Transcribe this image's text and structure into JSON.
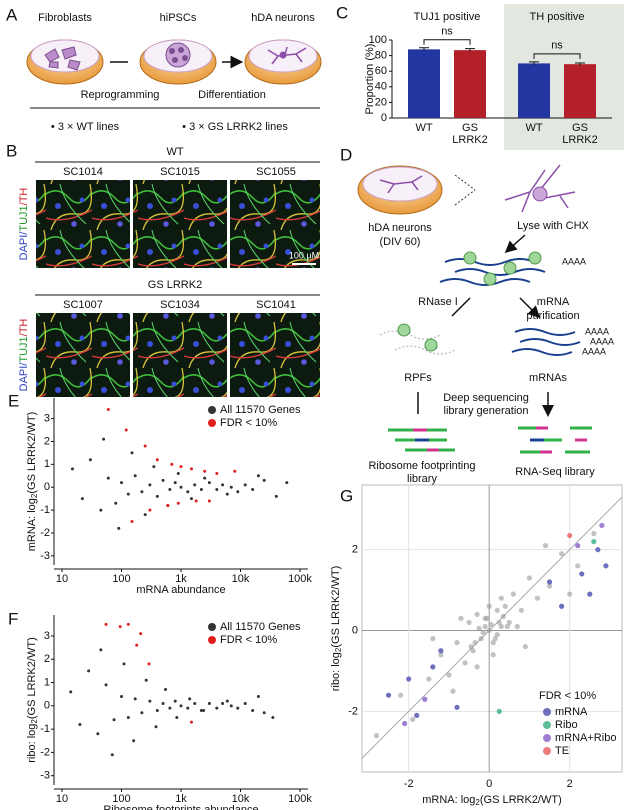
{
  "panel_labels": [
    "A",
    "B",
    "C",
    "D",
    "E",
    "F",
    "G"
  ],
  "panel_a": {
    "cells": [
      "Fibroblasts",
      "hiPSCs",
      "hDA neurons"
    ],
    "steps": [
      "Reprogramming",
      "Differentiation"
    ],
    "lines": [
      "• 3 × WT lines",
      "• 3 × GS LRRK2 lines"
    ]
  },
  "panel_b": {
    "groups": [
      {
        "title": "WT",
        "samples": [
          "SC1014",
          "SC1015",
          "SC1055"
        ]
      },
      {
        "title": "GS LRRK2",
        "samples": [
          "SC1007",
          "SC1034",
          "SC1041"
        ]
      }
    ],
    "stain_label": [
      "DAPI/",
      "TUJ1",
      "/TH"
    ],
    "scale_bar": "100 µM"
  },
  "panel_d": {
    "neurons": [
      "hDA neurons",
      "(DIV 60)"
    ],
    "lysis": "Lyse with CHX",
    "rnase": "RNase I",
    "purification": [
      "mRNA",
      "purification"
    ],
    "rpfs": "RPFs",
    "mrnas": "mRNAs",
    "sequencing": [
      "Deep sequencing",
      "library generation"
    ],
    "ribo_library": [
      "Ribosome footprinting",
      "library"
    ],
    "rnaseq_library": "RNA-Seq library",
    "poly_a": "AAAA"
  },
  "chart_data": [
    {
      "type": "bar",
      "ylabel": "Proportion (%)",
      "categories": [
        "TUJ1 positive",
        "TH positive"
      ],
      "series": [
        {
          "name": "WT",
          "color": "#2335a0",
          "values": [
            88,
            70
          ],
          "errors": [
            2,
            2
          ]
        },
        {
          "name": "GS LRRK2",
          "color": "#b3202a",
          "values": [
            87,
            69
          ],
          "errors": [
            2,
            1.5
          ]
        }
      ],
      "ylim": [
        0,
        100
      ],
      "yticks": [
        0,
        20,
        40,
        60,
        80,
        100
      ],
      "annotations": [
        "ns",
        "ns"
      ]
    },
    {
      "type": "scatter",
      "xlog": true,
      "xlabel": "mRNA abundance",
      "ylabel": [
        "mRNA: log",
        "2",
        "(GS LRRK2/WT)"
      ],
      "xlim": [
        10,
        100000
      ],
      "xticks": [
        10,
        100,
        {
          "value": 1000,
          "label": "1k"
        },
        {
          "value": 10000,
          "label": "10k"
        },
        {
          "value": 100000,
          "label": "100k"
        }
      ],
      "ylim": [
        -3.4,
        3.9
      ],
      "yticks": [
        -3,
        -2,
        -1,
        0,
        1,
        2,
        3
      ],
      "legend": "upper right",
      "series": [
        {
          "name": "All 11570 Genes",
          "color": "#333333",
          "x": [
            15,
            22,
            30,
            45,
            60,
            80,
            100,
            130,
            170,
            220,
            300,
            400,
            500,
            650,
            800,
            1000,
            1300,
            1700,
            2200,
            3000,
            4000,
            5000,
            7000,
            9000,
            12000,
            16000,
            25000,
            40000,
            60000,
            50,
            90,
            150,
            250,
            350,
            600,
            900,
            1500,
            2500,
            6000,
            20000
          ],
          "y": [
            0.8,
            -0.5,
            1.2,
            -1,
            0.4,
            -0.7,
            0.2,
            -0.3,
            0.5,
            -0.2,
            0.1,
            -0.4,
            0.3,
            -0.1,
            0.2,
            0,
            -0.2,
            0.1,
            -0.1,
            0.2,
            -0.1,
            0.1,
            0,
            -0.2,
            0.1,
            -0.1,
            0.3,
            -0.4,
            0.2,
            2.1,
            -1.8,
            1.5,
            -1.2,
            0.9,
            -0.8,
            0.6,
            -0.5,
            0.4,
            -0.3,
            0.5
          ]
        },
        {
          "name": "FDR < 10%",
          "color": "#e0201f",
          "x": [
            60,
            120,
            250,
            400,
            700,
            1000,
            1500,
            2500,
            4000,
            8000,
            300,
            600,
            900,
            1800,
            3000,
            150
          ],
          "y": [
            3.4,
            2.5,
            1.8,
            1.2,
            1.0,
            0.9,
            0.8,
            0.7,
            0.6,
            0.7,
            -1.0,
            -0.8,
            -0.7,
            -0.6,
            -0.6,
            -1.5
          ]
        }
      ]
    },
    {
      "type": "scatter",
      "xlog": true,
      "xlabel": "Ribosome footprints abundance",
      "ylabel": [
        "ribo: log",
        "2",
        "(GS LRRK2/WT)"
      ],
      "xlim": [
        10,
        100000
      ],
      "xticks": [
        10,
        100,
        {
          "value": 1000,
          "label": "1k"
        },
        {
          "value": 10000,
          "label": "10k"
        },
        {
          "value": 100000,
          "label": "100k"
        }
      ],
      "ylim": [
        -3.4,
        3.9
      ],
      "yticks": [
        -3,
        -2,
        -1,
        0,
        1,
        2,
        3
      ],
      "legend": "upper right",
      "series": [
        {
          "name": "All 11570 Genes",
          "color": "#333333",
          "x": [
            14,
            20,
            28,
            40,
            55,
            75,
            100,
            130,
            170,
            220,
            300,
            400,
            500,
            650,
            800,
            1000,
            1300,
            1700,
            2200,
            3000,
            4000,
            5000,
            7000,
            9000,
            12000,
            16000,
            25000,
            35000,
            45,
            70,
            110,
            160,
            260,
            380,
            550,
            850,
            1400,
            2400,
            6000,
            20000
          ],
          "y": [
            0.6,
            -0.8,
            1.5,
            -1.2,
            0.9,
            -0.6,
            0.4,
            -0.5,
            0.3,
            -0.3,
            0.2,
            -0.2,
            0.1,
            -0.1,
            0.2,
            0,
            -0.1,
            0.1,
            -0.2,
            0.1,
            -0.1,
            0.1,
            0,
            -0.1,
            0.1,
            -0.2,
            -0.3,
            -0.5,
            2.4,
            -2.1,
            1.8,
            -1.5,
            1.1,
            -0.9,
            0.7,
            -0.5,
            0.3,
            -0.2,
            0.2,
            0.4
          ]
        },
        {
          "name": "FDR < 10%",
          "color": "#e0201f",
          "x": [
            55,
            95,
            130,
            180,
            210,
            290,
            1500
          ],
          "y": [
            3.5,
            3.4,
            3.5,
            2.6,
            3.1,
            1.8,
            -0.7
          ]
        }
      ]
    },
    {
      "type": "scatter",
      "xlabel": [
        "mRNA: log",
        "2",
        "(GS LRRK2/WT)"
      ],
      "ylabel": [
        "ribo: log",
        "2",
        "(GS LRRK2/WT)"
      ],
      "xlim": [
        -3.16,
        3.3
      ],
      "ylim": [
        -3.5,
        3.6
      ],
      "xticks": [
        -2,
        0,
        2
      ],
      "yticks": [
        -2,
        0,
        2
      ],
      "grid": true,
      "diagonal": true,
      "legend": "lower right",
      "legend_title": "FDR < 10%",
      "series": [
        {
          "color": "#9a9a9a",
          "x": [
            -2.8,
            -2.2,
            -1.9,
            -1.5,
            -1.2,
            -1,
            -0.8,
            -0.6,
            -0.5,
            -0.4,
            -0.3,
            -0.2,
            -0.1,
            0,
            0.1,
            0.2,
            0.3,
            0.4,
            0.5,
            0.6,
            0.8,
            1,
            1.2,
            1.5,
            1.8,
            2.2,
            2.6,
            -0.7,
            0.7,
            -0.3,
            0.3,
            0,
            0.1,
            -0.1,
            0.2,
            1.4,
            -1.4,
            0.9,
            -0.9,
            2,
            0.05,
            -0.15,
            0.25,
            -0.35,
            0.15,
            -0.05,
            0.35,
            -0.25,
            0.45,
            -0.45
          ],
          "y": [
            -2.6,
            -1.6,
            -2.2,
            -1.2,
            -0.6,
            -1.1,
            -0.3,
            -0.8,
            0.2,
            -0.5,
            0.4,
            -0.2,
            0.3,
            0,
            -0.3,
            0.5,
            0.1,
            0.6,
            0.2,
            0.9,
            0.5,
            1.3,
            0.8,
            1.1,
            1.9,
            1.6,
            2.4,
            0.3,
            0.1,
            -0.9,
            0.8,
            0.6,
            -0.6,
            0.1,
            -0.1,
            2.1,
            -0.2,
            -0.4,
            -1.5,
            0.9,
            0.15,
            -0.05,
            0.2,
            -0.3,
            -0.2,
            0.3,
            0.35,
            0.05,
            0.1,
            -0.4
          ]
        },
        {
          "name": "mRNA",
          "color": "#6f6fc0",
          "x": [
            -2.5,
            -2,
            -1.8,
            -1.2,
            -1.4,
            1.5,
            1.8,
            2.3,
            2.5,
            2.7,
            2.9,
            -0.8
          ],
          "y": [
            -1.6,
            -1.2,
            -2.1,
            -0.5,
            -0.9,
            1.2,
            0.6,
            1.4,
            0.9,
            2.0,
            1.6,
            -1.9
          ]
        },
        {
          "name": "Ribo",
          "color": "#5fbf9a",
          "x": [
            0.25,
            2.6
          ],
          "y": [
            -2.0,
            2.2
          ]
        },
        {
          "name": "mRNA+Ribo",
          "color": "#a07fd0",
          "x": [
            -2.1,
            2.2,
            2.8,
            -1.6
          ],
          "y": [
            -2.3,
            2.1,
            2.6,
            -1.7
          ]
        },
        {
          "name": "TE",
          "color": "#ec7b7b",
          "x": [
            2.0
          ],
          "y": [
            2.35
          ]
        }
      ]
    }
  ]
}
